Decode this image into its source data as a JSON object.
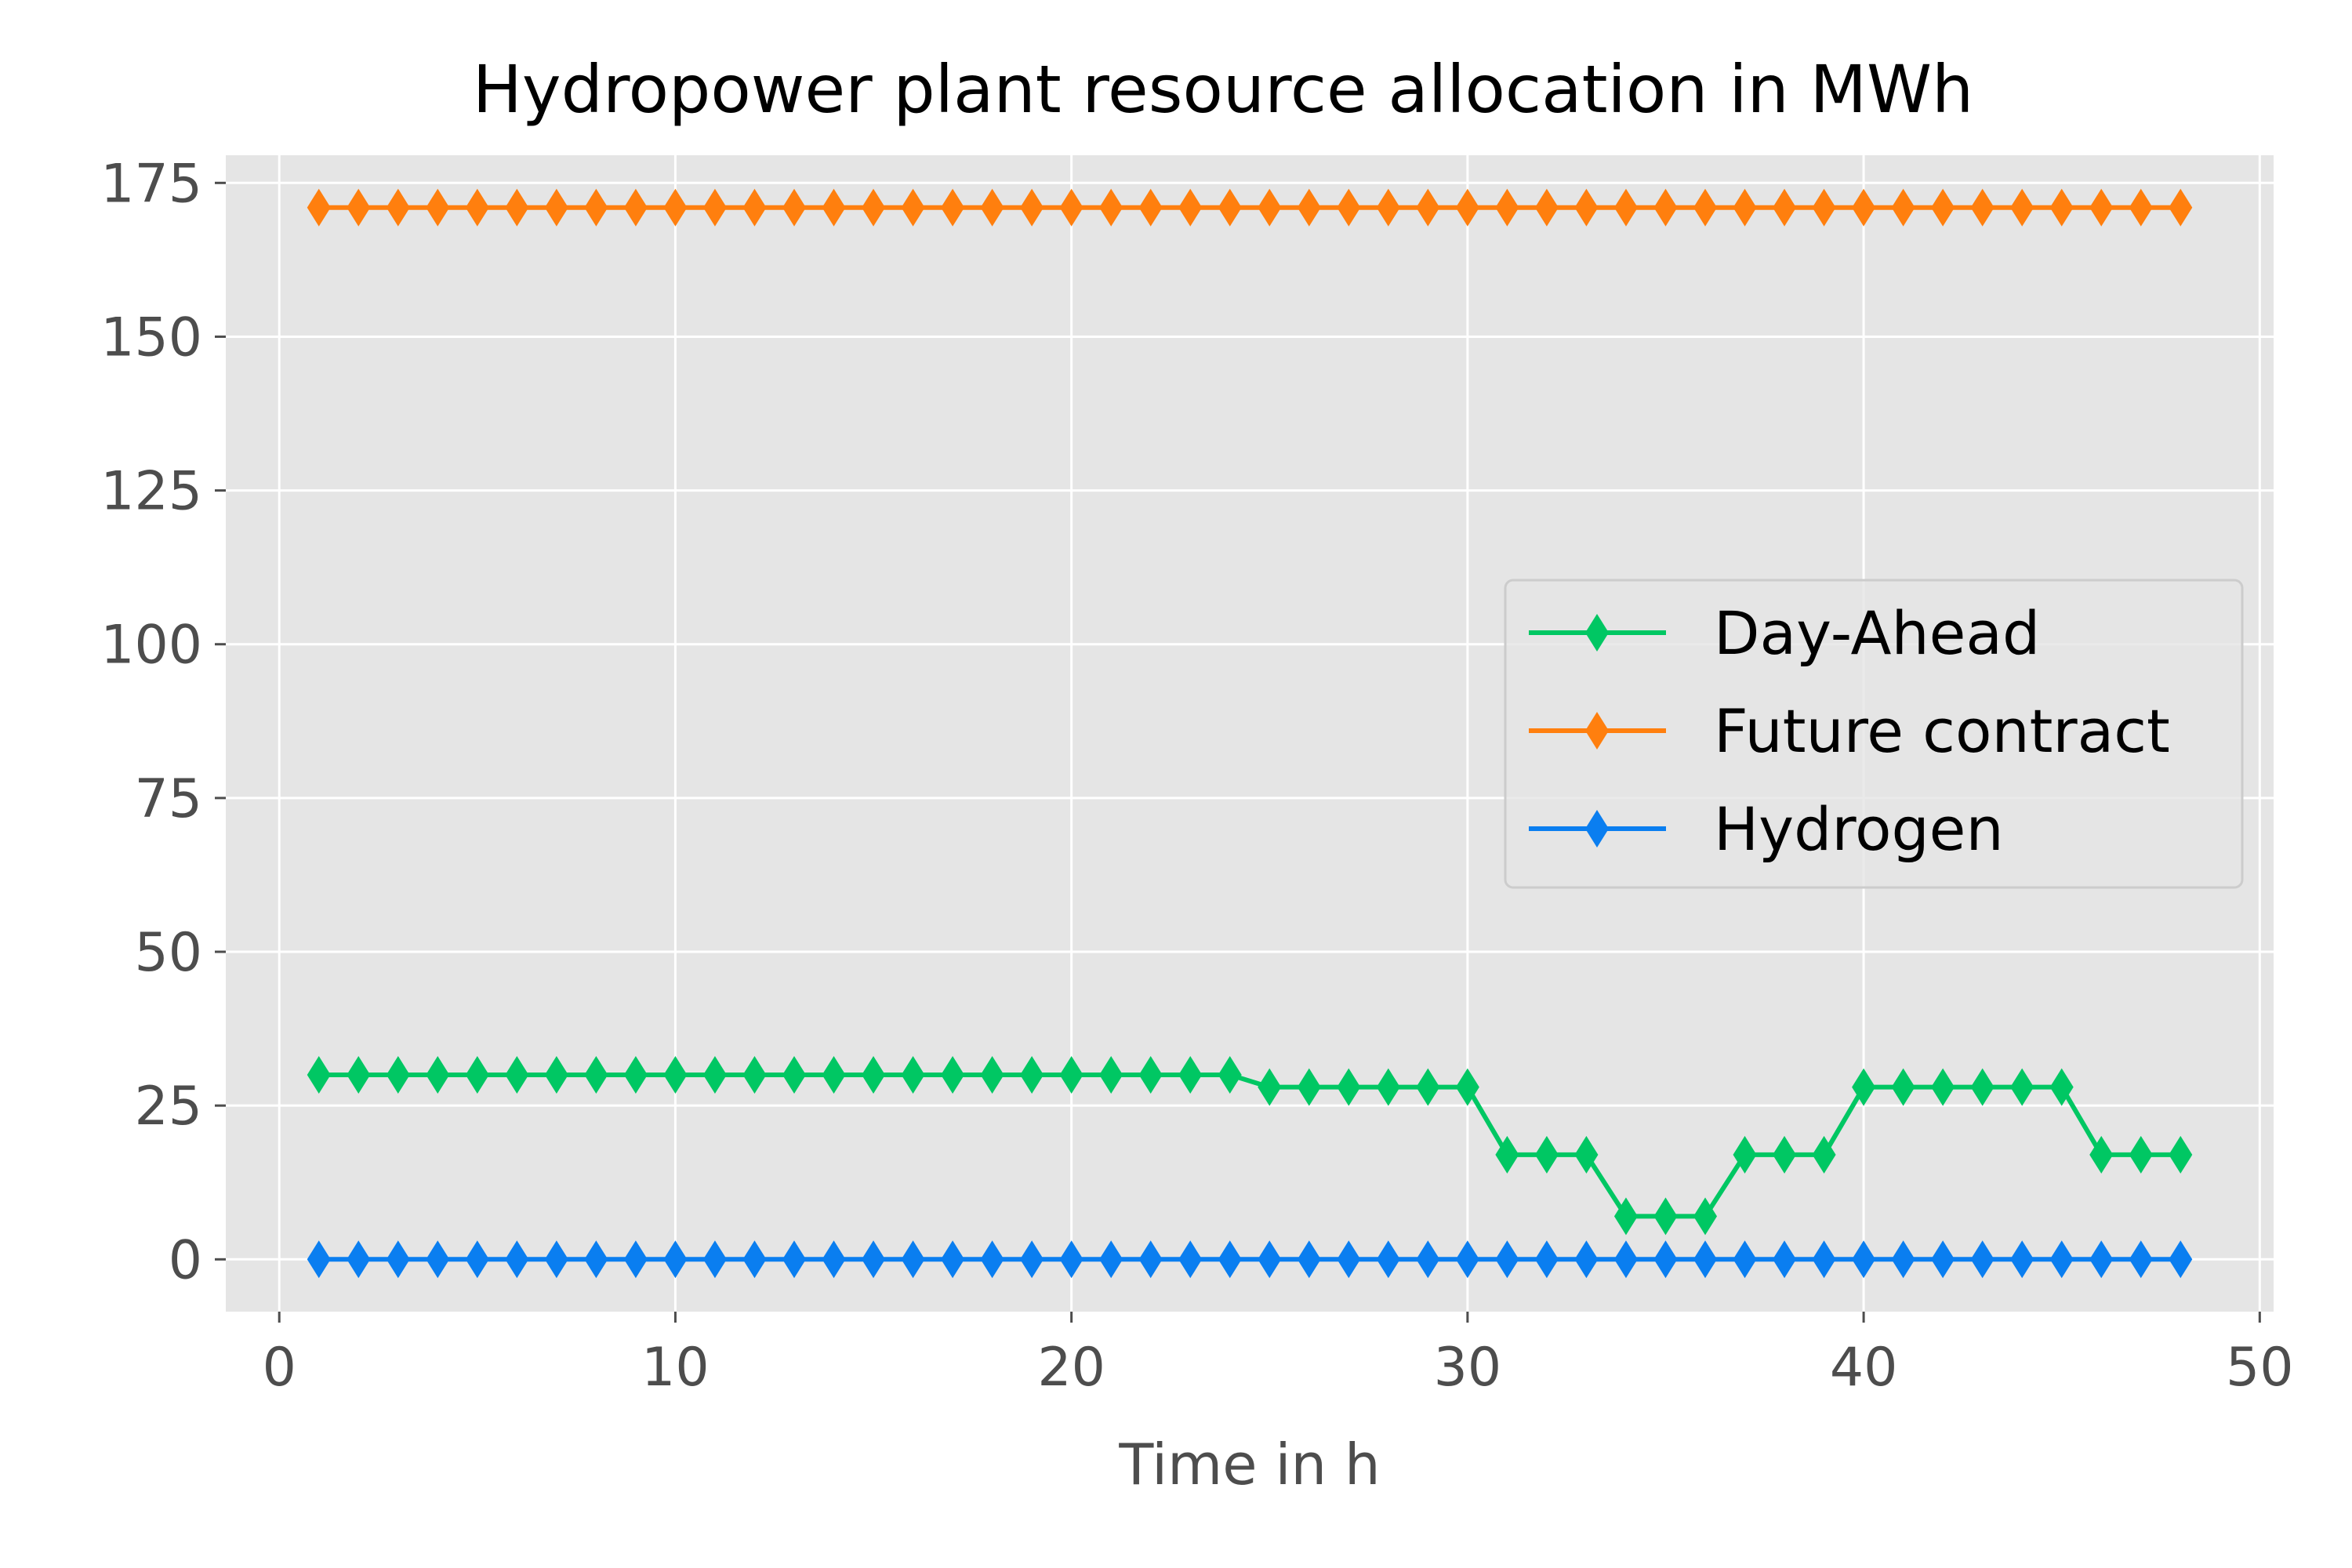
{
  "chart_data": {
    "type": "line",
    "title": "Hydropower plant resource allocation in MWh",
    "xlabel": "Time in h",
    "ylabel": "",
    "xlim": [
      -1.35,
      50.35
    ],
    "ylim": [
      -8.5,
      179.5
    ],
    "xticks": [
      0,
      10,
      20,
      30,
      40,
      50
    ],
    "yticks": [
      0,
      25,
      50,
      75,
      100,
      125,
      150,
      175
    ],
    "grid": true,
    "legend_position": "center-right",
    "x": [
      1,
      2,
      3,
      4,
      5,
      6,
      7,
      8,
      9,
      10,
      11,
      12,
      13,
      14,
      15,
      16,
      17,
      18,
      19,
      20,
      21,
      22,
      23,
      24,
      25,
      26,
      27,
      28,
      29,
      30,
      31,
      32,
      33,
      34,
      35,
      36,
      37,
      38,
      39,
      40,
      41,
      42,
      43,
      44,
      45,
      46,
      47,
      48
    ],
    "series": [
      {
        "name": "Day-Ahead",
        "color": "#00c763",
        "marker": "thin-diamond",
        "values": [
          30,
          30,
          30,
          30,
          30,
          30,
          30,
          30,
          30,
          30,
          30,
          30,
          30,
          30,
          30,
          30,
          30,
          30,
          30,
          30,
          30,
          30,
          30,
          30,
          28,
          28,
          28,
          28,
          28,
          28,
          17,
          17,
          17,
          7,
          7,
          7,
          17,
          17,
          17,
          28,
          28,
          28,
          28,
          28,
          28,
          17,
          17,
          17
        ]
      },
      {
        "name": "Future contract",
        "color": "#ff7f0e",
        "marker": "thin-diamond",
        "values": [
          171,
          171,
          171,
          171,
          171,
          171,
          171,
          171,
          171,
          171,
          171,
          171,
          171,
          171,
          171,
          171,
          171,
          171,
          171,
          171,
          171,
          171,
          171,
          171,
          171,
          171,
          171,
          171,
          171,
          171,
          171,
          171,
          171,
          171,
          171,
          171,
          171,
          171,
          171,
          171,
          171,
          171,
          171,
          171,
          171,
          171,
          171,
          171
        ]
      },
      {
        "name": "Hydrogen",
        "color": "#0a7ef0",
        "marker": "thin-diamond",
        "values": [
          0,
          0,
          0,
          0,
          0,
          0,
          0,
          0,
          0,
          0,
          0,
          0,
          0,
          0,
          0,
          0,
          0,
          0,
          0,
          0,
          0,
          0,
          0,
          0,
          0,
          0,
          0,
          0,
          0,
          0,
          0,
          0,
          0,
          0,
          0,
          0,
          0,
          0,
          0,
          0,
          0,
          0,
          0,
          0,
          0,
          0,
          0,
          0
        ]
      }
    ]
  }
}
